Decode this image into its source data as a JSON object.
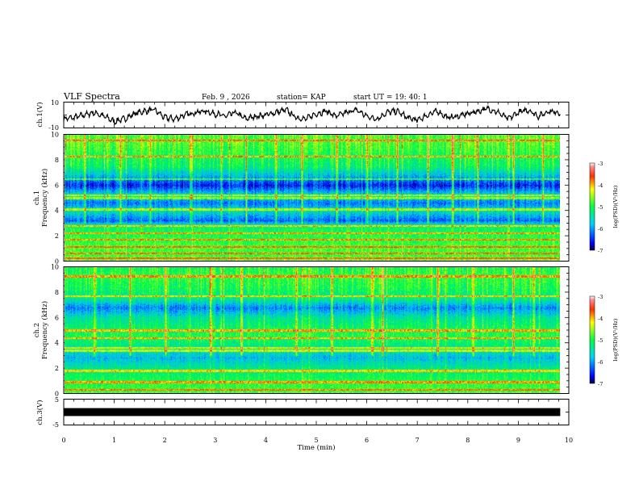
{
  "header": {
    "title": "VLF Spectra",
    "date": "Feb. 9 , 2026",
    "station": "station= KAP",
    "start": "start UT = 19: 40: 1"
  },
  "colors": {
    "waveform": "#000000",
    "ch3_band": "#000000",
    "frame": "#000000"
  },
  "chart_data": [
    {
      "type": "line",
      "id": "ch1-waveform",
      "ylabel": "ch.1(V)",
      "ylim": [
        -10,
        10
      ],
      "ytick_labels": [
        "10",
        "-10"
      ],
      "xlim": [
        0,
        10
      ],
      "x": [
        0,
        0.2,
        0.4,
        0.6,
        0.8,
        1.0,
        1.2,
        1.4,
        1.6,
        1.8,
        2.0,
        2.2,
        2.4,
        2.6,
        2.8,
        3.0,
        3.2,
        3.4,
        3.6,
        3.8,
        4.0,
        4.2,
        4.4,
        4.6,
        4.8,
        5.0,
        5.2,
        5.4,
        5.6,
        5.8,
        6.0,
        6.2,
        6.4,
        6.6,
        6.8,
        7.0,
        7.2,
        7.4,
        7.6,
        7.8,
        8.0,
        8.2,
        8.4,
        8.6,
        8.8,
        9.0,
        9.2,
        9.4,
        9.6,
        9.8
      ],
      "y": [
        -3,
        -2,
        0,
        2,
        -1,
        -5,
        -3,
        1,
        3,
        4,
        -2,
        -3,
        0,
        2,
        3,
        1,
        -1,
        2,
        -3,
        -1,
        0,
        2,
        4,
        -2,
        -3,
        1,
        3,
        -1,
        2,
        4,
        -1,
        -3,
        2,
        3,
        -2,
        -4,
        0,
        3,
        -2,
        -1,
        1,
        3,
        5,
        2,
        -3,
        2,
        4,
        -1,
        3,
        2
      ]
    },
    {
      "type": "heatmap",
      "id": "ch1-spectrogram",
      "ylabel_line1": "ch.1",
      "ylabel_line2": "Frequency (kHz)",
      "xlim": [
        0,
        9.83
      ],
      "ylim": [
        0,
        10
      ],
      "ytick_labels": [
        "10",
        "8",
        "6",
        "4",
        "2",
        "0"
      ],
      "colorbar": {
        "label": "log(PSD)(V²/Hz)",
        "range": [
          -7,
          -3
        ],
        "tick_labels": [
          "-3",
          "-4",
          "-5",
          "-6",
          "-7"
        ]
      },
      "base_profile": {
        "freq_khz": [
          0,
          0.5,
          1,
          2,
          2.8,
          3.2,
          4,
          4.6,
          5.2,
          6,
          6.8,
          7.5,
          8.5,
          9.3,
          10
        ],
        "log_psd": [
          -4.6,
          -4.9,
          -4.8,
          -5.0,
          -5.2,
          -6.3,
          -5.5,
          -6.2,
          -5.5,
          -6.6,
          -5.8,
          -5.2,
          -5.0,
          -4.8,
          -4.8
        ]
      },
      "lines_khz": [
        0.2,
        0.6,
        1.1,
        1.7,
        2.2,
        2.8,
        4.1,
        5.0,
        5.2,
        6.5,
        8.3,
        9.6
      ],
      "bursts_min": [
        0.4,
        1.1,
        1.7,
        2.5,
        3.1,
        3.6,
        4.2,
        4.7,
        5.4,
        6.0,
        6.6,
        7.2,
        7.7,
        8.2,
        8.9,
        9.5
      ]
    },
    {
      "type": "heatmap",
      "id": "ch2-spectrogram",
      "ylabel_line1": "ch.2",
      "ylabel_line2": "Frequency (kHz)",
      "xlim": [
        0,
        9.83
      ],
      "ylim": [
        0,
        10
      ],
      "ytick_labels": [
        "10",
        "8",
        "6",
        "4",
        "2",
        "0"
      ],
      "colorbar": {
        "label": "log(PSD)(V²/Hz)",
        "range": [
          -7,
          -3
        ],
        "tick_labels": [
          "-3",
          "-4",
          "-5",
          "-6",
          "-7"
        ]
      },
      "base_profile": {
        "freq_khz": [
          0,
          0.5,
          1,
          2,
          2.8,
          3.2,
          4,
          4.6,
          5.2,
          6,
          6.8,
          7.5,
          8.5,
          9.3,
          10
        ],
        "log_psd": [
          -4.8,
          -4.9,
          -5.0,
          -5.3,
          -5.8,
          -5.6,
          -5.2,
          -5.0,
          -5.1,
          -5.4,
          -6.1,
          -5.3,
          -5.0,
          -4.9,
          -5.0
        ]
      },
      "lines_khz": [
        0.3,
        0.9,
        1.8,
        3.4,
        3.6,
        4.4,
        5.0,
        7.7,
        9.3
      ],
      "bursts_min": [
        0.6,
        1.3,
        2.0,
        2.9,
        3.5,
        4.6,
        5.3,
        6.1,
        6.3,
        7.4,
        8.1,
        8.9,
        9.3
      ]
    },
    {
      "type": "line",
      "id": "ch3-waveform",
      "ylabel": "ch.3(V)",
      "ylim": [
        -5,
        5
      ],
      "ytick_labels": [
        "5",
        "-5"
      ],
      "xlim": [
        0,
        10
      ],
      "x": [
        0,
        9.83
      ],
      "y": [
        0,
        0
      ],
      "band_halfwidth": 0.6
    }
  ],
  "xaxis": {
    "label": "Time (min)",
    "tick_labels": [
      "0",
      "1",
      "2",
      "3",
      "4",
      "5",
      "6",
      "7",
      "8",
      "9",
      "10"
    ],
    "range": [
      0,
      10
    ]
  }
}
